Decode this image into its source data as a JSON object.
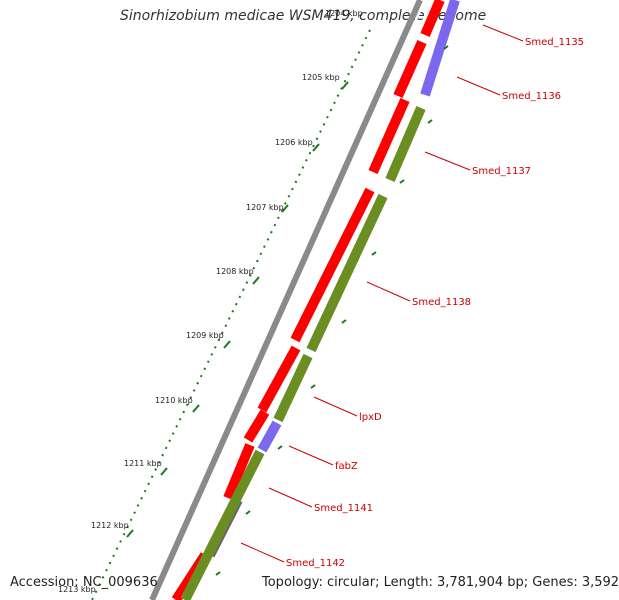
{
  "header": {
    "title": "Sinorhizobium medicae WSM419, complete genome"
  },
  "footer": {
    "accession": "Accession: NC_009636",
    "summary": "Topology: circular; Length: 3,781,904 bp; Genes: 3,592"
  },
  "ruler": {
    "ticks": [
      "1204 kbp",
      "1205 kbp",
      "1206 kbp",
      "1207 kbp",
      "1208 kbp",
      "1209 kbp",
      "1210 kbp",
      "1211 kbp",
      "1212 kbp",
      "1213 kbp"
    ]
  },
  "genes": [
    {
      "label": "Smed_1135"
    },
    {
      "label": "Smed_1136"
    },
    {
      "label": "Smed_1137"
    },
    {
      "label": "Smed_1138"
    },
    {
      "label": "lpxD"
    },
    {
      "label": "fabZ"
    },
    {
      "label": "Smed_1141"
    },
    {
      "label": "Smed_1142"
    }
  ],
  "colors": {
    "cds_forward": "#ff0000",
    "cds_reverse": "#6b8e23",
    "rna": "#7b68ee",
    "other": "#666666",
    "backbone": "#8a8a8a",
    "ruler_dots": "#1a7a1a",
    "label_text": "#cc0000"
  }
}
